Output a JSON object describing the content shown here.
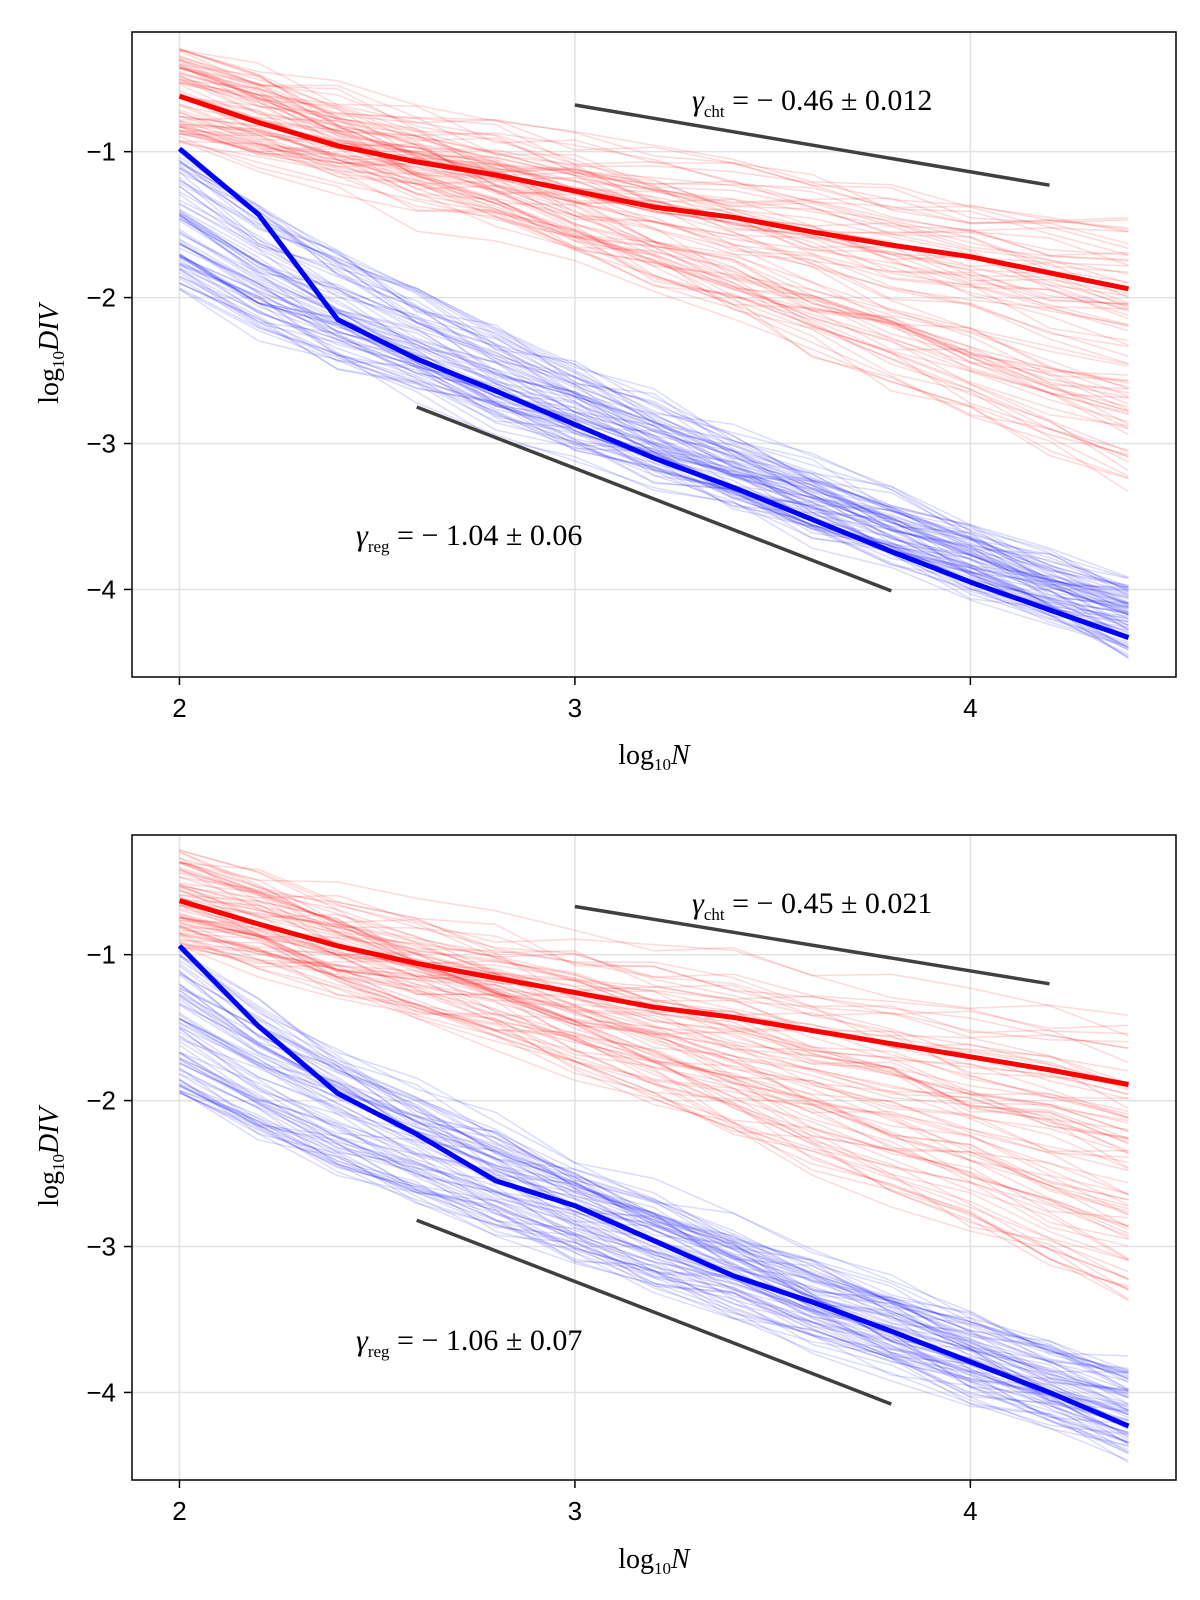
{
  "chart_data": [
    {
      "type": "line",
      "panel": "top",
      "xlabel": {
        "base": "log",
        "sub": "10",
        "var": "N"
      },
      "ylabel": {
        "base": "log",
        "sub": "10",
        "var": "DIV"
      },
      "xlim": [
        1.88,
        4.52
      ],
      "ylim": [
        -4.6,
        -0.18
      ],
      "xticks": [
        2,
        3,
        4
      ],
      "xtick_labels": [
        "2",
        "3",
        "4"
      ],
      "yticks": [
        -1,
        -2,
        -3,
        -4
      ],
      "ytick_labels": [
        "−1",
        "−2",
        "−3",
        "−4"
      ],
      "grid": true,
      "series": [
        {
          "name": "cht-mean",
          "color": "#ff0000",
          "x": [
            2.0,
            2.2,
            2.4,
            2.6,
            2.8,
            3.0,
            3.2,
            3.4,
            3.6,
            3.8,
            4.0,
            4.2,
            4.4
          ],
          "values": [
            -0.62,
            -0.8,
            -0.96,
            -1.07,
            -1.16,
            -1.27,
            -1.38,
            -1.45,
            -1.55,
            -1.64,
            -1.72,
            -1.83,
            -1.94
          ]
        },
        {
          "name": "reg-mean",
          "color": "#0000ff",
          "x": [
            2.0,
            2.2,
            2.4,
            2.6,
            2.8,
            3.0,
            3.2,
            3.4,
            3.6,
            3.8,
            4.0,
            4.2,
            4.4
          ],
          "values": [
            -0.98,
            -1.43,
            -2.15,
            -2.42,
            -2.64,
            -2.87,
            -3.1,
            -3.3,
            -3.52,
            -3.74,
            -3.95,
            -4.14,
            -4.33
          ]
        }
      ],
      "ensemble": {
        "count": 80,
        "x": [
          2.0,
          2.2,
          2.4,
          2.6,
          2.8,
          3.0,
          3.2,
          3.4,
          3.6,
          3.8,
          4.0,
          4.2,
          4.4
        ],
        "cht": {
          "color": "#ff0000",
          "opacity": 0.15,
          "start_range": [
            -0.95,
            -0.28
          ],
          "end_range": [
            -3.3,
            -1.45
          ]
        },
        "reg": {
          "color": "#0000ff",
          "opacity": 0.14,
          "start_range": [
            -1.95,
            -1.0
          ],
          "end_range": [
            -4.4,
            -3.98
          ]
        }
      },
      "reference_lines": [
        {
          "name": "cht-fit",
          "color": "#404040",
          "x": [
            3.0,
            4.2
          ],
          "y": [
            -0.68,
            -1.23
          ]
        },
        {
          "name": "reg-fit",
          "color": "#404040",
          "x": [
            2.6,
            3.8
          ],
          "y": [
            -2.75,
            -4.01
          ]
        }
      ],
      "annotations": {
        "cht": {
          "symbol": "γ",
          "sub": "cht",
          "text": " = − 0.46 ± 0.012"
        },
        "reg": {
          "symbol": "γ",
          "sub": "reg",
          "text": " = − 1.04 ± 0.06"
        }
      }
    },
    {
      "type": "line",
      "panel": "bottom",
      "xlabel": {
        "base": "log",
        "sub": "10",
        "var": "N"
      },
      "ylabel": {
        "base": "log",
        "sub": "10",
        "var": "DIV"
      },
      "xlim": [
        1.88,
        4.52
      ],
      "ylim": [
        -4.6,
        -0.18
      ],
      "xticks": [
        2,
        3,
        4
      ],
      "xtick_labels": [
        "2",
        "3",
        "4"
      ],
      "yticks": [
        -1,
        -2,
        -3,
        -4
      ],
      "ytick_labels": [
        "−1",
        "−2",
        "−3",
        "−4"
      ],
      "grid": true,
      "series": [
        {
          "name": "cht-mean",
          "color": "#ff0000",
          "x": [
            2.0,
            2.2,
            2.4,
            2.6,
            2.8,
            3.0,
            3.2,
            3.4,
            3.6,
            3.8,
            4.0,
            4.2,
            4.4
          ],
          "values": [
            -0.63,
            -0.79,
            -0.94,
            -1.06,
            -1.16,
            -1.26,
            -1.36,
            -1.43,
            -1.52,
            -1.61,
            -1.7,
            -1.79,
            -1.89
          ]
        },
        {
          "name": "reg-mean",
          "color": "#0000ff",
          "x": [
            2.0,
            2.2,
            2.4,
            2.6,
            2.8,
            3.0,
            3.2,
            3.4,
            3.6,
            3.8,
            4.0,
            4.2,
            4.4
          ],
          "values": [
            -0.94,
            -1.49,
            -1.95,
            -2.23,
            -2.55,
            -2.72,
            -2.96,
            -3.2,
            -3.38,
            -3.58,
            -3.79,
            -4.0,
            -4.23
          ]
        }
      ],
      "ensemble": {
        "count": 80,
        "x": [
          2.0,
          2.2,
          2.4,
          2.6,
          2.8,
          3.0,
          3.2,
          3.4,
          3.6,
          3.8,
          4.0,
          4.2,
          4.4
        ],
        "cht": {
          "color": "#ff0000",
          "opacity": 0.15,
          "start_range": [
            -0.95,
            -0.28
          ],
          "end_range": [
            -3.35,
            -1.42
          ]
        },
        "reg": {
          "color": "#0000ff",
          "opacity": 0.14,
          "start_range": [
            -1.95,
            -0.95
          ],
          "end_range": [
            -4.4,
            -3.82
          ]
        }
      },
      "reference_lines": [
        {
          "name": "cht-fit",
          "color": "#404040",
          "x": [
            3.0,
            4.2
          ],
          "y": [
            -0.67,
            -1.2
          ]
        },
        {
          "name": "reg-fit",
          "color": "#404040",
          "x": [
            2.6,
            3.8
          ],
          "y": [
            -2.82,
            -4.08
          ]
        }
      ],
      "annotations": {
        "cht": {
          "symbol": "γ",
          "sub": "cht",
          "text": " = − 0.45 ± 0.021"
        },
        "reg": {
          "symbol": "γ",
          "sub": "reg",
          "text": " = − 1.06 ± 0.07"
        }
      }
    }
  ]
}
